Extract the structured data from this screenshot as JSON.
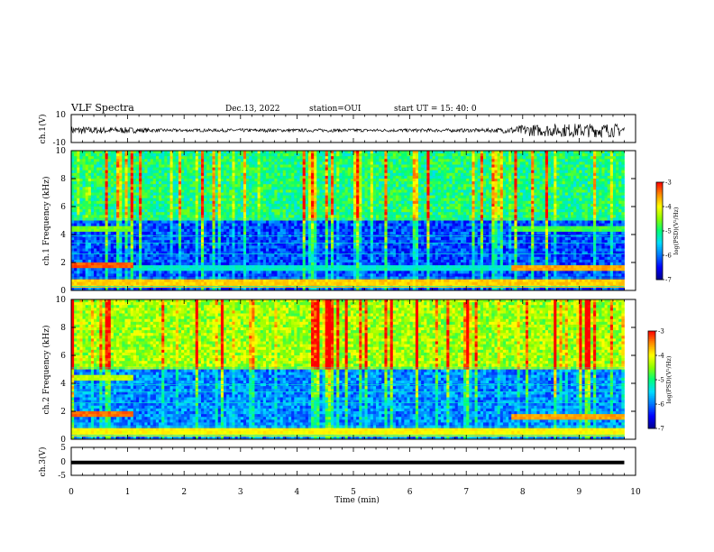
{
  "header": {
    "title": "VLF Spectra",
    "date": "Dec.13, 2022",
    "station": "station=OUI",
    "start": "start  UT =   15: 40: 0"
  },
  "colors": {
    "colormap": [
      "#00008c",
      "#0000ff",
      "#0078ff",
      "#00dcff",
      "#00ff78",
      "#8cff00",
      "#ffff00",
      "#ff8c00",
      "#ff0000",
      "#ffffff"
    ],
    "trace": "#000000",
    "frame": "#000000"
  },
  "chart_data": [
    {
      "type": "line",
      "panel": "ch1-waveform",
      "ylabel": "ch.1(V)",
      "ylim": [
        -10,
        10
      ],
      "y_ticks": [
        "10",
        "-10"
      ],
      "x": [
        0,
        0.5,
        1,
        1.5,
        2,
        2.5,
        3,
        3.5,
        4,
        4.5,
        5,
        5.5,
        6,
        6.5,
        7,
        7.5,
        7.8,
        8,
        8.5,
        9,
        9.5,
        9.8
      ],
      "amplitude": [
        3.0,
        2.5,
        2.2,
        1.2,
        1.1,
        1.1,
        1.2,
        1.2,
        1.1,
        1.2,
        1.2,
        1.1,
        1.2,
        1.2,
        1.3,
        1.4,
        2.5,
        4.0,
        4.5,
        5.0,
        5.0,
        4.5
      ]
    },
    {
      "type": "heatmap",
      "panel": "ch1-spectrogram",
      "ylabel": "ch.1 Frequency (kHz)",
      "xlim": [
        0,
        10
      ],
      "ylim": [
        0,
        10
      ],
      "y_ticks": [
        "0",
        "2",
        "4",
        "6",
        "8",
        "10"
      ],
      "colorbar": {
        "label": "log(PSD)(V²/Hz)",
        "range": [
          -7,
          -3
        ],
        "ticks": [
          "-3",
          "-4",
          "-5",
          "-6",
          "-7"
        ]
      },
      "background_level": {
        "above_5kHz": -5.0,
        "below_5kHz": -6.2
      },
      "bands_kHz": [
        {
          "freq": 4.4,
          "t_start": 0,
          "t_end": 1.1,
          "level": -4.6
        },
        {
          "freq": 4.4,
          "t_start": 7.8,
          "t_end": 9.8,
          "level": -4.8
        },
        {
          "freq": 1.8,
          "t_start": 0,
          "t_end": 1.1,
          "level": -3.3
        },
        {
          "freq": 1.6,
          "t_start": 7.8,
          "t_end": 9.8,
          "level": -3.6
        },
        {
          "freq": 1.6,
          "t_start": 1.1,
          "t_end": 7.8,
          "level": -5.3
        },
        {
          "freq": 0.5,
          "t_start": 0,
          "t_end": 9.8,
          "level": -3.8
        }
      ]
    },
    {
      "type": "heatmap",
      "panel": "ch2-spectrogram",
      "ylabel": "ch.2 Frequency (kHz)",
      "xlim": [
        0,
        10
      ],
      "ylim": [
        0,
        10
      ],
      "y_ticks": [
        "0",
        "2",
        "4",
        "6",
        "8",
        "10"
      ],
      "colorbar": {
        "label": "log(PSD)(V²/Hz)",
        "range": [
          -7,
          -3
        ],
        "ticks": [
          "-3",
          "-4",
          "-5",
          "-6",
          "-7"
        ]
      },
      "background_level": {
        "above_5kHz": -4.4,
        "below_5kHz": -5.9
      },
      "bands_kHz": [
        {
          "freq": 4.4,
          "t_start": 0,
          "t_end": 1.1,
          "level": -4.3
        },
        {
          "freq": 1.8,
          "t_start": 0,
          "t_end": 1.1,
          "level": -3.4
        },
        {
          "freq": 1.6,
          "t_start": 7.8,
          "t_end": 9.8,
          "level": -3.6
        },
        {
          "freq": 0.5,
          "t_start": 0,
          "t_end": 9.8,
          "level": -4.0
        }
      ]
    },
    {
      "type": "line",
      "panel": "ch3-waveform",
      "ylabel": "ch.3(V)",
      "xlabel": "Time  (min)",
      "ylim": [
        -5,
        5
      ],
      "y_ticks": [
        "5",
        "0",
        "-5"
      ],
      "x": [
        0,
        9.8
      ],
      "y": [
        -0.4,
        -0.4
      ],
      "x_ticks": [
        "0",
        "1",
        "2",
        "3",
        "4",
        "5",
        "6",
        "7",
        "8",
        "9",
        "10"
      ],
      "xlim": [
        0,
        10
      ]
    }
  ]
}
